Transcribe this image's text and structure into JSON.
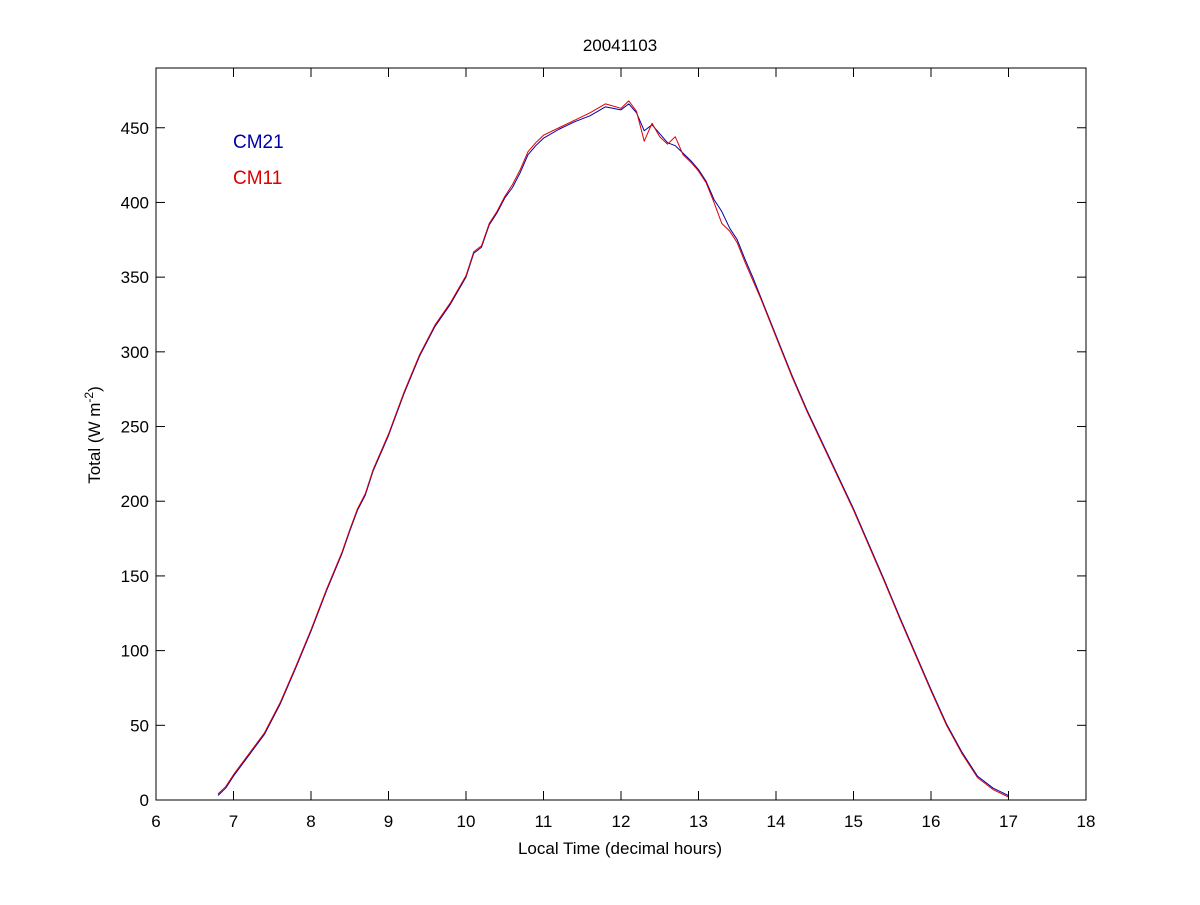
{
  "chart_data": {
    "type": "line",
    "title": "20041103",
    "xlabel": "Local Time (decimal hours)",
    "ylabel_main": "Total (W m",
    "ylabel_sup": "-2",
    "ylabel_close": ")",
    "xlim": [
      6,
      18
    ],
    "ylim": [
      0,
      490
    ],
    "xticks": [
      6,
      7,
      8,
      9,
      10,
      11,
      12,
      13,
      14,
      15,
      16,
      17,
      18
    ],
    "yticks": [
      0,
      50,
      100,
      150,
      200,
      250,
      300,
      350,
      400,
      450
    ],
    "grid": false,
    "legend_position": "top-left",
    "series": [
      {
        "name": "CM21",
        "color": "#0000aa",
        "points": [
          [
            6.8,
            3
          ],
          [
            6.9,
            8
          ],
          [
            7.0,
            16
          ],
          [
            7.2,
            30
          ],
          [
            7.4,
            44
          ],
          [
            7.6,
            64
          ],
          [
            7.8,
            88
          ],
          [
            8.0,
            113
          ],
          [
            8.2,
            140
          ],
          [
            8.4,
            165
          ],
          [
            8.5,
            180
          ],
          [
            8.6,
            194
          ],
          [
            8.7,
            204
          ],
          [
            8.8,
            220
          ],
          [
            9.0,
            244
          ],
          [
            9.2,
            272
          ],
          [
            9.4,
            297
          ],
          [
            9.6,
            317
          ],
          [
            9.8,
            332
          ],
          [
            10.0,
            350
          ],
          [
            10.1,
            366
          ],
          [
            10.2,
            370
          ],
          [
            10.3,
            385
          ],
          [
            10.4,
            393
          ],
          [
            10.5,
            403
          ],
          [
            10.6,
            410
          ],
          [
            10.7,
            420
          ],
          [
            10.8,
            432
          ],
          [
            10.9,
            438
          ],
          [
            11.0,
            443
          ],
          [
            11.2,
            449
          ],
          [
            11.4,
            454
          ],
          [
            11.6,
            458
          ],
          [
            11.8,
            464
          ],
          [
            12.0,
            462
          ],
          [
            12.1,
            466
          ],
          [
            12.2,
            460
          ],
          [
            12.3,
            448
          ],
          [
            12.4,
            452
          ],
          [
            12.5,
            446
          ],
          [
            12.6,
            440
          ],
          [
            12.7,
            438
          ],
          [
            12.8,
            433
          ],
          [
            12.9,
            428
          ],
          [
            13.0,
            422
          ],
          [
            13.1,
            414
          ],
          [
            13.2,
            402
          ],
          [
            13.3,
            394
          ],
          [
            13.4,
            383
          ],
          [
            13.5,
            375
          ],
          [
            13.6,
            362
          ],
          [
            13.7,
            350
          ],
          [
            13.8,
            337
          ],
          [
            14.0,
            311
          ],
          [
            14.2,
            285
          ],
          [
            14.4,
            261
          ],
          [
            14.6,
            239
          ],
          [
            14.8,
            217
          ],
          [
            15.0,
            195
          ],
          [
            15.2,
            171
          ],
          [
            15.4,
            147
          ],
          [
            15.6,
            122
          ],
          [
            15.8,
            98
          ],
          [
            16.0,
            74
          ],
          [
            16.2,
            51
          ],
          [
            16.4,
            32
          ],
          [
            16.6,
            16
          ],
          [
            16.8,
            8
          ],
          [
            17.0,
            3
          ]
        ]
      },
      {
        "name": "CM11",
        "color": "#dd0000",
        "points": [
          [
            6.8,
            4
          ],
          [
            6.9,
            9
          ],
          [
            7.0,
            17
          ],
          [
            7.2,
            31
          ],
          [
            7.4,
            45
          ],
          [
            7.6,
            65
          ],
          [
            7.8,
            89
          ],
          [
            8.0,
            114
          ],
          [
            8.2,
            141
          ],
          [
            8.4,
            166
          ],
          [
            8.5,
            181
          ],
          [
            8.6,
            195
          ],
          [
            8.7,
            205
          ],
          [
            8.8,
            221
          ],
          [
            9.0,
            245
          ],
          [
            9.2,
            273
          ],
          [
            9.4,
            298
          ],
          [
            9.6,
            318
          ],
          [
            9.8,
            333
          ],
          [
            10.0,
            351
          ],
          [
            10.1,
            367
          ],
          [
            10.2,
            371
          ],
          [
            10.3,
            386
          ],
          [
            10.4,
            394
          ],
          [
            10.5,
            404
          ],
          [
            10.6,
            412
          ],
          [
            10.7,
            422
          ],
          [
            10.8,
            434
          ],
          [
            10.9,
            440
          ],
          [
            11.0,
            445
          ],
          [
            11.2,
            450
          ],
          [
            11.4,
            455
          ],
          [
            11.6,
            460
          ],
          [
            11.8,
            466
          ],
          [
            12.0,
            463
          ],
          [
            12.1,
            468
          ],
          [
            12.2,
            461
          ],
          [
            12.3,
            441
          ],
          [
            12.4,
            453
          ],
          [
            12.5,
            444
          ],
          [
            12.6,
            439
          ],
          [
            12.7,
            444
          ],
          [
            12.8,
            432
          ],
          [
            12.9,
            427
          ],
          [
            13.0,
            421
          ],
          [
            13.1,
            413
          ],
          [
            13.2,
            400
          ],
          [
            13.3,
            386
          ],
          [
            13.4,
            381
          ],
          [
            13.5,
            373
          ],
          [
            13.6,
            360
          ],
          [
            13.7,
            348
          ],
          [
            13.8,
            336
          ],
          [
            14.0,
            310
          ],
          [
            14.2,
            284
          ],
          [
            14.4,
            260
          ],
          [
            14.6,
            238
          ],
          [
            14.8,
            216
          ],
          [
            15.0,
            194
          ],
          [
            15.2,
            170
          ],
          [
            15.4,
            146
          ],
          [
            15.6,
            121
          ],
          [
            15.8,
            97
          ],
          [
            16.0,
            73
          ],
          [
            16.2,
            50
          ],
          [
            16.4,
            31
          ],
          [
            16.6,
            15
          ],
          [
            16.8,
            7
          ],
          [
            17.0,
            2
          ]
        ]
      }
    ]
  }
}
